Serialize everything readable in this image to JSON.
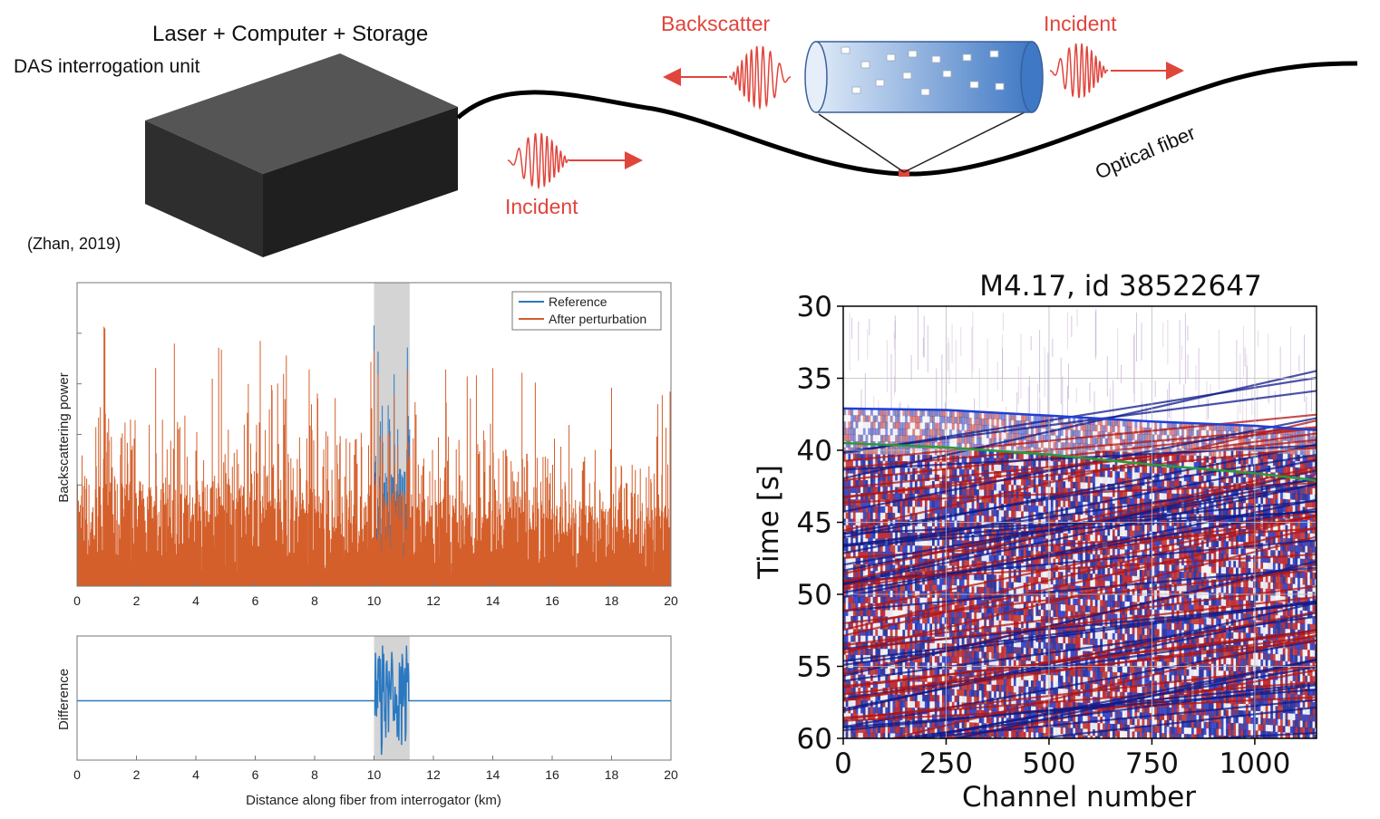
{
  "schematic": {
    "unit_top_label": "Laser + Computer + Storage",
    "unit_label": "DAS interrogation unit",
    "citation": "(Zhan, 2019)",
    "incident_left_label": "Incident",
    "backscatter_label": "Backscatter",
    "incident_right_label": "Incident",
    "fiber_label": "Optical fiber",
    "icons": [
      "interrogator-box-icon",
      "fiber-segment-icon",
      "wave-packet-icon",
      "arrow-icon"
    ],
    "colors": {
      "wave": "#e0453c",
      "fiber": "#000000",
      "box": "#2a2a2a",
      "segment": "#5b8fd0"
    }
  },
  "chart_data": [
    {
      "id": "backscatter",
      "type": "line",
      "title": "",
      "xlabel": "",
      "ylabel": "Backscattering power",
      "xlim": [
        0,
        20
      ],
      "x_ticks": [
        "0",
        "2",
        "4",
        "6",
        "8",
        "10",
        "12",
        "14",
        "16",
        "18",
        "20"
      ],
      "highlight_range": [
        10,
        11.2
      ],
      "legend": {
        "placement": "top-right",
        "entries": [
          "Reference",
          "After perturbation"
        ]
      },
      "series": [
        {
          "name": "Reference",
          "color": "#2a78c1"
        },
        {
          "name": "After perturbation",
          "color": "#d45f2b"
        }
      ]
    },
    {
      "id": "difference",
      "type": "line",
      "title": "",
      "xlabel": "Distance along fiber from interrogator (km)",
      "ylabel": "Difference",
      "xlim": [
        0,
        20
      ],
      "x_ticks": [
        "0",
        "2",
        "4",
        "6",
        "8",
        "10",
        "12",
        "14",
        "16",
        "18",
        "20"
      ],
      "highlight_range": [
        10,
        11.2
      ],
      "series": [
        {
          "color": "#2a78c1"
        }
      ]
    },
    {
      "id": "das-record",
      "type": "heatmap",
      "title": "M4.17, id 38522647",
      "xlabel": "Channel number",
      "ylabel": "Time [s]",
      "xlim": [
        0,
        1150
      ],
      "ylim": [
        60,
        30
      ],
      "x_ticks": [
        "0",
        "250",
        "500",
        "750",
        "1000"
      ],
      "y_ticks": [
        "30",
        "35",
        "40",
        "45",
        "50",
        "55",
        "60"
      ],
      "grid": true,
      "picks": [
        {
          "color": "#1f3fd6",
          "x": [
            0,
            250,
            500,
            750,
            1000,
            1150
          ],
          "y": [
            37.1,
            37.2,
            37.6,
            38.0,
            38.3,
            38.6
          ]
        },
        {
          "color": "#2a9a3a",
          "x": [
            0,
            250,
            500,
            750,
            1000,
            1150
          ],
          "y": [
            39.5,
            39.8,
            40.3,
            41.0,
            41.6,
            42.1
          ]
        }
      ],
      "colormap": [
        "#1f2bd0",
        "#ffffff",
        "#d01f1f"
      ]
    }
  ]
}
